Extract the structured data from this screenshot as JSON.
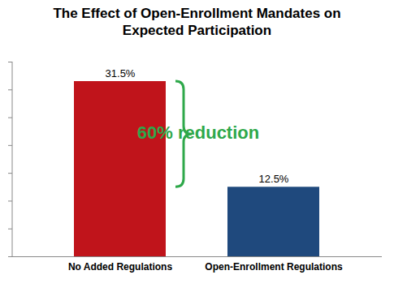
{
  "chart_data": {
    "type": "bar",
    "title": "The Effect of Open-Enrollment Mandates on Expected Participation",
    "categories": [
      "No Added Regulations",
      "Open-Enrollment Regulations"
    ],
    "values": [
      31.5,
      12.5
    ],
    "value_labels": [
      "31.5%",
      "12.5%"
    ],
    "colors": [
      "#c0141b",
      "#1f497d"
    ],
    "ylim": [
      0,
      35
    ],
    "yticks": [
      0,
      5,
      10,
      15,
      20,
      25,
      30,
      35
    ],
    "grid": false,
    "data_labels": true,
    "tick_labels": "x",
    "annotation": "60% reduction"
  }
}
